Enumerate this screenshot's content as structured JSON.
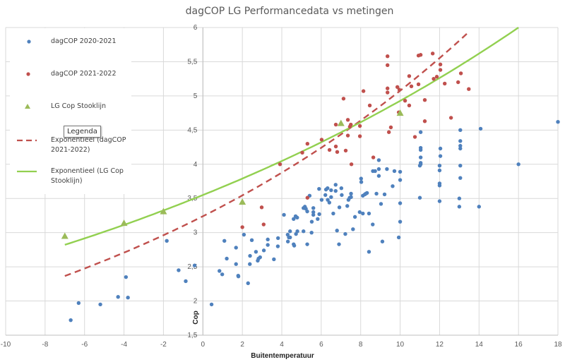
{
  "chart_data": {
    "type": "scatter",
    "title": "dagCOP LG Performancedata vs metingen",
    "xlabel": "Buitentemperatuur",
    "ylabel": "Cop",
    "xlim": [
      -10,
      18
    ],
    "ylim": [
      1.5,
      6
    ],
    "x_ticks": [
      "-10",
      "-8",
      "-6",
      "-4",
      "-2",
      "0",
      "2",
      "4",
      "6",
      "8",
      "10",
      "12",
      "14",
      "16",
      "18"
    ],
    "y_ticks": [
      "1,5",
      "2",
      "2,5",
      "3",
      "3,5",
      "4",
      "4,5",
      "5",
      "5,5",
      "6"
    ],
    "grid": true,
    "legend_placement": "left",
    "series": [
      {
        "name": "dagCOP 2020-2021",
        "marker": "circle",
        "color": "#4f81bd",
        "points": [
          [
            -6.7,
            1.72
          ],
          [
            -6.3,
            1.97
          ],
          [
            -5.2,
            1.95
          ],
          [
            -4.3,
            2.06
          ],
          [
            -3.9,
            2.35
          ],
          [
            -3.8,
            2.05
          ],
          [
            -1.83,
            2.88
          ],
          [
            -1.23,
            2.45
          ],
          [
            -0.87,
            2.29
          ],
          [
            -0.42,
            2.52
          ],
          [
            0.44,
            1.95
          ],
          [
            0.84,
            2.44
          ],
          [
            0.98,
            2.39
          ],
          [
            1.09,
            2.88
          ],
          [
            1.21,
            2.62
          ],
          [
            1.68,
            2.78
          ],
          [
            1.68,
            2.54
          ],
          [
            1.79,
            2.37
          ],
          [
            1.8,
            2.36
          ],
          [
            2.08,
            2.97
          ],
          [
            2.29,
            2.26
          ],
          [
            2.38,
            2.54
          ],
          [
            2.39,
            2.66
          ],
          [
            2.48,
            2.89
          ],
          [
            2.69,
            2.72
          ],
          [
            2.78,
            2.59
          ],
          [
            2.82,
            2.62
          ],
          [
            2.9,
            2.64
          ],
          [
            3.09,
            2.74
          ],
          [
            3.29,
            2.82
          ],
          [
            3.29,
            2.9
          ],
          [
            3.6,
            2.61
          ],
          [
            3.8,
            2.8
          ],
          [
            3.81,
            2.92
          ],
          [
            4.11,
            3.26
          ],
          [
            4.3,
            2.97
          ],
          [
            4.31,
            2.87
          ],
          [
            4.36,
            2.93
          ],
          [
            4.42,
            2.93
          ],
          [
            4.42,
            3.02
          ],
          [
            4.6,
            3.2
          ],
          [
            4.6,
            2.83
          ],
          [
            4.63,
            2.81
          ],
          [
            4.7,
            3.24
          ],
          [
            4.78,
            3.22
          ],
          [
            4.72,
            2.98
          ],
          [
            4.79,
            3.02
          ],
          [
            5.1,
            3.36
          ],
          [
            5.1,
            3.02
          ],
          [
            5.17,
            3.38
          ],
          [
            5.22,
            3.35
          ],
          [
            5.29,
            3.31
          ],
          [
            5.29,
            2.83
          ],
          [
            5.41,
            3.54
          ],
          [
            5.51,
            3.0
          ],
          [
            5.52,
            3.16
          ],
          [
            5.6,
            3.36
          ],
          [
            5.6,
            3.3
          ],
          [
            5.6,
            3.26
          ],
          [
            5.82,
            3.2
          ],
          [
            5.89,
            3.64
          ],
          [
            5.9,
            3.27
          ],
          [
            6.02,
            3.48
          ],
          [
            6.21,
            3.55
          ],
          [
            6.24,
            3.63
          ],
          [
            6.32,
            3.65
          ],
          [
            6.33,
            3.48
          ],
          [
            6.41,
            3.44
          ],
          [
            6.5,
            3.52
          ],
          [
            6.5,
            3.62
          ],
          [
            6.61,
            3.28
          ],
          [
            6.73,
            3.7
          ],
          [
            6.73,
            3.61
          ],
          [
            6.8,
            3.03
          ],
          [
            6.9,
            2.83
          ],
          [
            6.92,
            3.37
          ],
          [
            7.02,
            3.65
          ],
          [
            7.04,
            3.55
          ],
          [
            7.22,
            2.98
          ],
          [
            7.32,
            3.39
          ],
          [
            7.38,
            3.48
          ],
          [
            7.44,
            3.51
          ],
          [
            7.51,
            3.57
          ],
          [
            7.51,
            3.52
          ],
          [
            7.61,
            3.05
          ],
          [
            7.71,
            3.23
          ],
          [
            7.95,
            3.3
          ],
          [
            8.02,
            3.79
          ],
          [
            8.03,
            3.74
          ],
          [
            8.11,
            3.54
          ],
          [
            8.11,
            3.28
          ],
          [
            8.21,
            3.56
          ],
          [
            8.26,
            3.57
          ],
          [
            8.32,
            3.58
          ],
          [
            8.42,
            3.28
          ],
          [
            8.42,
            2.72
          ],
          [
            8.61,
            3.12
          ],
          [
            8.62,
            3.9
          ],
          [
            8.73,
            3.9
          ],
          [
            8.8,
            3.57
          ],
          [
            8.92,
            3.83
          ],
          [
            8.92,
            3.93
          ],
          [
            8.92,
            4.06
          ],
          [
            9.03,
            3.42
          ],
          [
            9.1,
            2.87
          ],
          [
            9.21,
            3.56
          ],
          [
            9.33,
            3.93
          ],
          [
            9.62,
            3.68
          ],
          [
            9.71,
            3.9
          ],
          [
            9.93,
            2.93
          ],
          [
            10.0,
            3.89
          ],
          [
            10.0,
            3.77
          ],
          [
            10.0,
            3.43
          ],
          [
            10.0,
            3.16
          ],
          [
            11.0,
            3.51
          ],
          [
            11.0,
            3.98
          ],
          [
            11.04,
            4.47
          ],
          [
            11.04,
            4.24
          ],
          [
            11.04,
            4.21
          ],
          [
            11.04,
            4.1
          ],
          [
            11.04,
            4.02
          ],
          [
            11.04,
            4.0
          ],
          [
            12.0,
            3.98
          ],
          [
            12.0,
            3.91
          ],
          [
            12.0,
            3.69
          ],
          [
            12.0,
            3.46
          ],
          [
            12.0,
            3.72
          ],
          [
            12.04,
            4.23
          ],
          [
            12.04,
            4.12
          ],
          [
            13.05,
            4.5
          ],
          [
            13.05,
            4.34
          ],
          [
            13.05,
            4.27
          ],
          [
            13.05,
            4.23
          ],
          [
            13.05,
            3.98
          ],
          [
            13.05,
            3.8
          ],
          [
            13.0,
            3.5
          ],
          [
            13.0,
            3.38
          ],
          [
            14.0,
            3.38
          ],
          [
            14.08,
            4.52
          ],
          [
            16.0,
            4.0
          ],
          [
            18.0,
            4.62
          ]
        ]
      },
      {
        "name": "dagCOP 2021-2022",
        "marker": "circle",
        "color": "#c0504d",
        "points": [
          [
            2.0,
            3.08
          ],
          [
            2.98,
            3.37
          ],
          [
            3.08,
            3.12
          ],
          [
            3.91,
            4.0
          ],
          [
            5.04,
            4.17
          ],
          [
            5.3,
            4.3
          ],
          [
            5.3,
            3.51
          ],
          [
            6.02,
            4.36
          ],
          [
            6.42,
            4.21
          ],
          [
            6.74,
            4.26
          ],
          [
            6.81,
            4.18
          ],
          [
            6.74,
            4.58
          ],
          [
            7.13,
            4.96
          ],
          [
            7.24,
            4.2
          ],
          [
            7.35,
            4.42
          ],
          [
            7.35,
            4.65
          ],
          [
            7.45,
            4.55
          ],
          [
            7.5,
            4.58
          ],
          [
            7.53,
            4.0
          ],
          [
            7.96,
            4.56
          ],
          [
            7.96,
            4.41
          ],
          [
            8.14,
            5.07
          ],
          [
            8.46,
            4.86
          ],
          [
            8.64,
            4.1
          ],
          [
            9.36,
            5.58
          ],
          [
            9.36,
            5.45
          ],
          [
            9.36,
            5.11
          ],
          [
            9.36,
            5.05
          ],
          [
            9.43,
            4.47
          ],
          [
            9.53,
            4.54
          ],
          [
            9.86,
            5.13
          ],
          [
            9.96,
            5.09
          ],
          [
            9.93,
            4.76
          ],
          [
            10.25,
            4.93
          ],
          [
            10.46,
            5.29
          ],
          [
            10.46,
            4.86
          ],
          [
            10.57,
            5.14
          ],
          [
            10.75,
            4.4
          ],
          [
            10.93,
            5.17
          ],
          [
            10.93,
            5.59
          ],
          [
            11.04,
            5.6
          ],
          [
            11.25,
            4.94
          ],
          [
            11.25,
            4.63
          ],
          [
            11.65,
            5.62
          ],
          [
            11.7,
            5.25
          ],
          [
            11.86,
            5.28
          ],
          [
            12.04,
            5.46
          ],
          [
            12.04,
            5.38
          ],
          [
            12.26,
            5.18
          ],
          [
            12.58,
            4.68
          ],
          [
            12.94,
            5.2
          ],
          [
            13.08,
            5.33
          ],
          [
            13.48,
            5.1
          ]
        ]
      },
      {
        "name": "LG Cop Stooklijn",
        "marker": "triangle",
        "color": "#9bbb59",
        "points": [
          [
            -7,
            2.95
          ],
          [
            -4,
            3.14
          ],
          [
            -2,
            3.31
          ],
          [
            2,
            3.45
          ],
          [
            7,
            4.6
          ],
          [
            10,
            4.75
          ]
        ]
      },
      {
        "name": "Exponentieel (dagCOP 2021-2022)",
        "type": "trendline",
        "style": "dashed",
        "color": "#c0504d",
        "model": "exponential",
        "a": 3.24,
        "b": 0.0449,
        "x_range": [
          -7,
          13.7
        ]
      },
      {
        "name": "Exponentieel (LG Cop Stooklijn)",
        "type": "trendline",
        "style": "solid",
        "color": "#92d050",
        "model": "exponential",
        "a": 3.55,
        "b": 0.0328,
        "x_range": [
          -7,
          16
        ]
      }
    ]
  },
  "tooltip": "Legenda"
}
